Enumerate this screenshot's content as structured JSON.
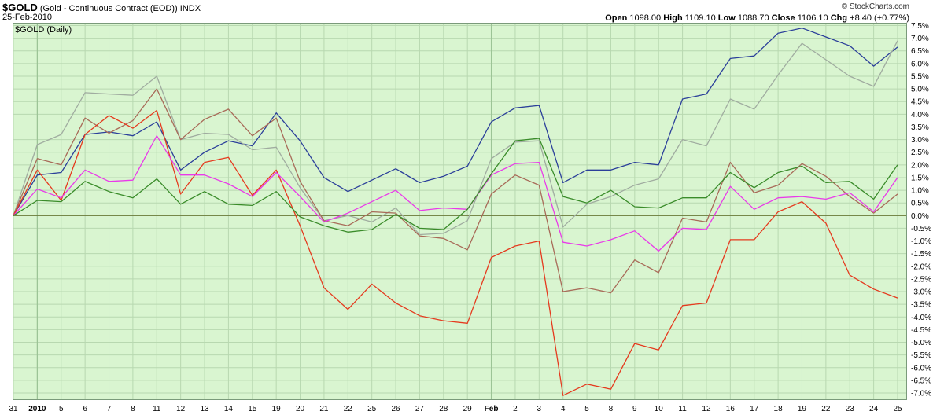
{
  "header": {
    "symbol": "$GOLD",
    "description": "(Gold - Continuous Contract (EOD))",
    "exchange": "INDX",
    "date": "25-Feb-2010",
    "brand": "© StockCharts.com",
    "open_label": "Open",
    "open_value": "1098.00",
    "high_label": "High",
    "high_value": "1109.10",
    "low_label": "Low",
    "low_value": "1088.70",
    "close_label": "Close",
    "close_value": "1106.10",
    "chg_label": "Chg",
    "chg_value": "+8.40 (+0.77%)"
  },
  "chart_data": {
    "type": "line",
    "title": "$GOLD (Daily)",
    "x": [
      "31",
      "2010",
      "5",
      "6",
      "7",
      "8",
      "11",
      "12",
      "13",
      "14",
      "15",
      "19",
      "20",
      "21",
      "22",
      "25",
      "26",
      "27",
      "28",
      "29",
      "Feb",
      "2",
      "3",
      "4",
      "5",
      "8",
      "9",
      "10",
      "11",
      "12",
      "16",
      "17",
      "18",
      "19",
      "22",
      "23",
      "24",
      "25"
    ],
    "ylim": [
      -7.5,
      7.5
    ],
    "y_ticks": [
      7.5,
      7.0,
      6.5,
      6.0,
      5.5,
      5.0,
      4.5,
      4.0,
      3.5,
      3.0,
      2.5,
      2.0,
      1.5,
      1.0,
      0.5,
      0.0,
      -0.5,
      -1.0,
      -1.5,
      -2.0,
      -2.5,
      -3.0,
      -3.5,
      -4.0,
      -4.5,
      -5.0,
      -5.5,
      -6.0,
      -6.5,
      -7.0
    ],
    "y_tick_labels": [
      "7.5%",
      "7.0%",
      "6.5%",
      "6.0%",
      "5.5%",
      "5.0%",
      "4.5%",
      "4.0%",
      "3.5%",
      "3.0%",
      "2.5%",
      "2.0%",
      "1.5%",
      "1.0%",
      "0.5%",
      "0.0%",
      "-0.5%",
      "-1.0%",
      "-1.5%",
      "-2.0%",
      "-2.5%",
      "-3.0%",
      "-3.5%",
      "-4.0%",
      "-4.5%",
      "-5.0%",
      "-5.5%",
      "-6.0%",
      "-6.5%",
      "-7.0%"
    ],
    "bold_x_labels": [
      "2010",
      "Feb"
    ],
    "vertical_markers": [
      "2010",
      "Feb"
    ],
    "grid": true,
    "background": "#d9f5d0",
    "series": [
      {
        "color": "#2b3f9a",
        "values": [
          0.0,
          1.6,
          1.7,
          3.2,
          3.3,
          3.15,
          3.7,
          1.8,
          2.5,
          2.95,
          2.75,
          4.05,
          2.95,
          1.5,
          0.95,
          1.4,
          1.85,
          1.3,
          1.55,
          1.95,
          3.7,
          4.25,
          4.35,
          1.3,
          1.8,
          1.8,
          2.1,
          2.0,
          4.6,
          4.8,
          6.2,
          6.3,
          7.2,
          7.4,
          7.05,
          6.7,
          5.9,
          6.65
        ]
      },
      {
        "color": "#a0aca0",
        "values": [
          0.0,
          2.8,
          3.2,
          4.85,
          4.8,
          4.75,
          5.5,
          3.0,
          3.25,
          3.2,
          2.6,
          2.7,
          1.1,
          -0.2,
          0.0,
          -0.25,
          0.3,
          -0.75,
          -0.7,
          -0.2,
          2.25,
          2.9,
          2.95,
          -0.45,
          0.45,
          0.75,
          1.2,
          1.45,
          3.0,
          2.75,
          4.6,
          4.2,
          5.55,
          6.8,
          6.15,
          5.5,
          5.1,
          6.9
        ]
      },
      {
        "color": "#a86a58",
        "values": [
          0.0,
          2.25,
          2.0,
          3.85,
          3.25,
          3.75,
          5.0,
          3.0,
          3.8,
          4.2,
          3.15,
          3.85,
          1.35,
          -0.2,
          -0.4,
          0.15,
          0.1,
          -0.8,
          -0.9,
          -1.35,
          0.85,
          1.6,
          1.2,
          -3.0,
          -2.85,
          -3.05,
          -1.75,
          -2.25,
          -0.1,
          -0.25,
          2.1,
          0.9,
          1.2,
          2.05,
          1.55,
          0.75,
          0.1,
          0.85
        ]
      },
      {
        "color": "#e53a1e",
        "values": [
          0.0,
          1.8,
          0.6,
          3.2,
          3.95,
          3.45,
          4.15,
          0.85,
          2.1,
          2.3,
          0.8,
          1.8,
          -0.4,
          -2.85,
          -3.7,
          -2.7,
          -3.45,
          -3.95,
          -4.15,
          -4.25,
          -1.65,
          -1.2,
          -1.0,
          -7.1,
          -6.65,
          -6.85,
          -5.05,
          -5.3,
          -3.55,
          -3.45,
          -0.95,
          -0.95,
          0.15,
          0.55,
          -0.3,
          -2.35,
          -2.9,
          -3.25
        ]
      },
      {
        "color": "#e93ae9",
        "values": [
          0.0,
          1.05,
          0.7,
          1.8,
          1.35,
          1.4,
          3.15,
          1.6,
          1.6,
          1.25,
          0.75,
          1.7,
          0.75,
          -0.25,
          0.1,
          0.55,
          1.0,
          0.2,
          0.3,
          0.25,
          1.6,
          2.05,
          2.1,
          -1.05,
          -1.2,
          -0.95,
          -0.6,
          -1.4,
          -0.5,
          -0.55,
          1.15,
          0.25,
          0.7,
          0.75,
          0.65,
          0.9,
          0.15,
          1.5
        ]
      },
      {
        "color": "#3a8c2a",
        "values": [
          0.0,
          0.6,
          0.55,
          1.35,
          0.95,
          0.7,
          1.45,
          0.45,
          0.95,
          0.45,
          0.4,
          0.95,
          -0.05,
          -0.4,
          -0.65,
          -0.55,
          0.05,
          -0.5,
          -0.55,
          0.25,
          1.65,
          2.95,
          3.05,
          0.75,
          0.5,
          1.0,
          0.35,
          0.3,
          0.7,
          0.7,
          1.7,
          1.1,
          1.7,
          1.95,
          1.3,
          1.35,
          0.65,
          2.0
        ]
      }
    ]
  }
}
